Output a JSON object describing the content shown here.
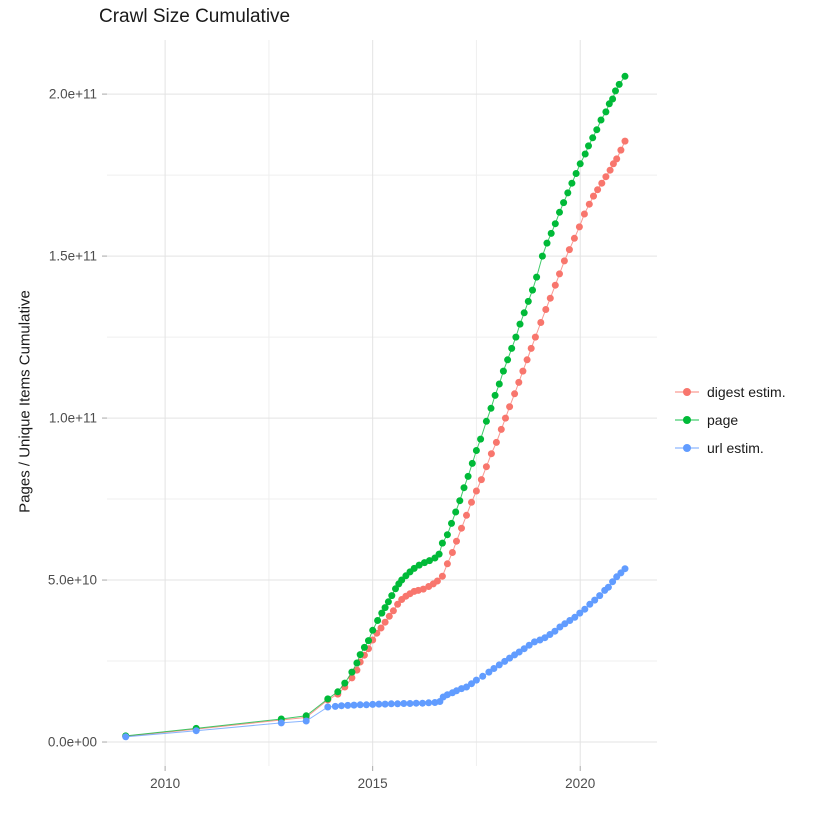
{
  "title": "Crawl Size Cumulative",
  "chart_data": {
    "type": "scatter",
    "title": "Crawl Size Cumulative",
    "xlabel": "",
    "ylabel": "Pages / Unique Items Cumulative",
    "grid": true,
    "legend_position": "right",
    "x_range": [
      2008.6,
      2021.85
    ],
    "y_range": [
      -7400000000,
      216700000000
    ],
    "x_ticks": {
      "major": [
        2010,
        2015,
        2020
      ],
      "minor": [
        2012.5,
        2017.5
      ],
      "labels": [
        "2010",
        "2015",
        "2020"
      ]
    },
    "y_ticks": {
      "major": [
        0,
        50000000000,
        100000000000,
        150000000000,
        200000000000
      ],
      "minor": [
        25000000000,
        75000000000,
        125000000000,
        175000000000
      ],
      "labels": [
        "0.0e+00",
        "5.0e+10",
        "1.0e+11",
        "1.5e+11",
        "2.0e+11"
      ]
    },
    "series": [
      {
        "name": "digest estim.",
        "color": "#F8766D",
        "points": [
          [
            2009.05,
            1800000000.0
          ],
          [
            2010.75,
            4000000000.0
          ],
          [
            2012.8,
            6800000000.0
          ],
          [
            2013.4,
            7600000000.0
          ],
          [
            2013.92,
            13000000000.0
          ],
          [
            2014.16,
            14800000000.0
          ],
          [
            2014.33,
            17000000000.0
          ],
          [
            2014.5,
            19800000000.0
          ],
          [
            2014.62,
            22200000000.0
          ],
          [
            2014.7,
            24700000000.0
          ],
          [
            2014.8,
            26800000000.0
          ],
          [
            2014.9,
            28800000000.0
          ],
          [
            2015.0,
            31500000000.0
          ],
          [
            2015.1,
            33600000000.0
          ],
          [
            2015.2,
            35200000000.0
          ],
          [
            2015.3,
            37000000000.0
          ],
          [
            2015.4,
            38800000000.0
          ],
          [
            2015.5,
            40500000000.0
          ],
          [
            2015.6,
            42500000000.0
          ],
          [
            2015.7,
            44000000000.0
          ],
          [
            2015.8,
            45000000000.0
          ],
          [
            2015.9,
            45800000000.0
          ],
          [
            2016.0,
            46500000000.0
          ],
          [
            2016.1,
            46800000000.0
          ],
          [
            2016.22,
            47200000000.0
          ],
          [
            2016.35,
            48000000000.0
          ],
          [
            2016.46,
            48800000000.0
          ],
          [
            2016.56,
            49700000000.0
          ],
          [
            2016.68,
            51200000000.0
          ],
          [
            2016.8,
            55000000000.0
          ],
          [
            2016.92,
            58500000000.0
          ],
          [
            2017.02,
            62000000000.0
          ],
          [
            2017.14,
            66000000000.0
          ],
          [
            2017.26,
            70000000000.0
          ],
          [
            2017.38,
            74000000000.0
          ],
          [
            2017.5,
            77500000000.0
          ],
          [
            2017.62,
            81000000000.0
          ],
          [
            2017.74,
            85000000000.0
          ],
          [
            2017.86,
            89000000000.0
          ],
          [
            2017.98,
            92500000000.0
          ],
          [
            2018.1,
            96500000000.0
          ],
          [
            2018.2,
            100000000000.0
          ],
          [
            2018.3,
            103500000000.0
          ],
          [
            2018.42,
            107500000000.0
          ],
          [
            2018.52,
            111000000000.0
          ],
          [
            2018.62,
            114500000000.0
          ],
          [
            2018.72,
            118000000000.0
          ],
          [
            2018.82,
            121500000000.0
          ],
          [
            2018.92,
            125000000000.0
          ],
          [
            2019.05,
            129500000000.0
          ],
          [
            2019.17,
            133500000000.0
          ],
          [
            2019.28,
            137000000000.0
          ],
          [
            2019.4,
            141000000000.0
          ],
          [
            2019.5,
            144500000000.0
          ],
          [
            2019.62,
            148500000000.0
          ],
          [
            2019.74,
            152000000000.0
          ],
          [
            2019.86,
            155500000000.0
          ],
          [
            2019.98,
            159000000000.0
          ],
          [
            2020.1,
            163000000000.0
          ],
          [
            2020.22,
            166000000000.0
          ],
          [
            2020.32,
            168500000000.0
          ],
          [
            2020.42,
            170500000000.0
          ],
          [
            2020.52,
            172500000000.0
          ],
          [
            2020.62,
            174500000000.0
          ],
          [
            2020.72,
            176500000000.0
          ],
          [
            2020.8,
            178500000000.0
          ],
          [
            2020.88,
            180000000000.0
          ],
          [
            2020.98,
            182700000000.0
          ],
          [
            2021.08,
            185500000000.0
          ]
        ]
      },
      {
        "name": "page",
        "color": "#00BA38",
        "points": [
          [
            2009.05,
            1900000000.0
          ],
          [
            2010.75,
            4200000000.0
          ],
          [
            2012.8,
            7100000000.0
          ],
          [
            2013.4,
            8100000000.0
          ],
          [
            2013.92,
            13300000000.0
          ],
          [
            2014.16,
            15500000000.0
          ],
          [
            2014.33,
            18200000000.0
          ],
          [
            2014.5,
            21600000000.0
          ],
          [
            2014.62,
            24400000000.0
          ],
          [
            2014.7,
            27000000000.0
          ],
          [
            2014.8,
            29200000000.0
          ],
          [
            2014.9,
            31300000000.0
          ],
          [
            2015.0,
            34500000000.0
          ],
          [
            2015.12,
            37500000000.0
          ],
          [
            2015.22,
            39800000000.0
          ],
          [
            2015.3,
            41500000000.0
          ],
          [
            2015.38,
            43300000000.0
          ],
          [
            2015.46,
            45200000000.0
          ],
          [
            2015.55,
            47300000000.0
          ],
          [
            2015.63,
            48800000000.0
          ],
          [
            2015.7,
            50000000000.0
          ],
          [
            2015.8,
            51300000000.0
          ],
          [
            2015.9,
            52500000000.0
          ],
          [
            2016.0,
            53600000000.0
          ],
          [
            2016.12,
            54600000000.0
          ],
          [
            2016.25,
            55400000000.0
          ],
          [
            2016.37,
            56000000000.0
          ],
          [
            2016.5,
            56800000000.0
          ],
          [
            2016.6,
            58000000000.0
          ],
          [
            2016.68,
            61400000000.0
          ],
          [
            2016.8,
            64000000000.0
          ],
          [
            2016.9,
            67500000000.0
          ],
          [
            2017.0,
            71000000000.0
          ],
          [
            2017.1,
            74500000000.0
          ],
          [
            2017.2,
            78500000000.0
          ],
          [
            2017.3,
            82000000000.0
          ],
          [
            2017.4,
            86000000000.0
          ],
          [
            2017.5,
            90000000000.0
          ],
          [
            2017.6,
            93500000000.0
          ],
          [
            2017.74,
            99000000000.0
          ],
          [
            2017.85,
            103000000000.0
          ],
          [
            2017.95,
            107000000000.0
          ],
          [
            2018.05,
            110500000000.0
          ],
          [
            2018.15,
            114500000000.0
          ],
          [
            2018.25,
            118000000000.0
          ],
          [
            2018.35,
            121500000000.0
          ],
          [
            2018.45,
            125000000000.0
          ],
          [
            2018.55,
            129000000000.0
          ],
          [
            2018.65,
            132500000000.0
          ],
          [
            2018.75,
            136000000000.0
          ],
          [
            2018.85,
            139500000000.0
          ],
          [
            2018.95,
            143500000000.0
          ],
          [
            2019.09,
            150000000000.0
          ],
          [
            2019.2,
            154000000000.0
          ],
          [
            2019.3,
            157000000000.0
          ],
          [
            2019.4,
            160000000000.0
          ],
          [
            2019.5,
            163500000000.0
          ],
          [
            2019.6,
            166500000000.0
          ],
          [
            2019.7,
            169500000000.0
          ],
          [
            2019.8,
            172500000000.0
          ],
          [
            2019.9,
            175500000000.0
          ],
          [
            2020.0,
            178500000000.0
          ],
          [
            2020.12,
            181500000000.0
          ],
          [
            2020.2,
            184000000000.0
          ],
          [
            2020.3,
            186500000000.0
          ],
          [
            2020.4,
            189000000000.0
          ],
          [
            2020.5,
            192000000000.0
          ],
          [
            2020.62,
            194500000000.0
          ],
          [
            2020.7,
            197000000000.0
          ],
          [
            2020.78,
            198500000000.0
          ],
          [
            2020.85,
            201000000000.0
          ],
          [
            2020.94,
            203000000000.0
          ],
          [
            2021.08,
            205500000000.0
          ]
        ]
      },
      {
        "name": "url estim.",
        "color": "#619CFF",
        "points": [
          [
            2009.05,
            1600000000.0
          ],
          [
            2010.75,
            3500000000.0
          ],
          [
            2012.8,
            5900000000.0
          ],
          [
            2013.4,
            6500000000.0
          ],
          [
            2013.92,
            10800000000.0
          ],
          [
            2014.1,
            11000000000.0
          ],
          [
            2014.25,
            11200000000.0
          ],
          [
            2014.4,
            11300000000.0
          ],
          [
            2014.55,
            11400000000.0
          ],
          [
            2014.7,
            11500000000.0
          ],
          [
            2014.85,
            11500000000.0
          ],
          [
            2015.0,
            11600000000.0
          ],
          [
            2015.15,
            11700000000.0
          ],
          [
            2015.3,
            11700000000.0
          ],
          [
            2015.45,
            11800000000.0
          ],
          [
            2015.6,
            11800000000.0
          ],
          [
            2015.75,
            11900000000.0
          ],
          [
            2015.9,
            11900000000.0
          ],
          [
            2016.05,
            12000000000.0
          ],
          [
            2016.2,
            12000000000.0
          ],
          [
            2016.35,
            12100000000.0
          ],
          [
            2016.5,
            12200000000.0
          ],
          [
            2016.62,
            12500000000.0
          ],
          [
            2016.7,
            13900000000.0
          ],
          [
            2016.8,
            14600000000.0
          ],
          [
            2016.92,
            15200000000.0
          ],
          [
            2017.02,
            15800000000.0
          ],
          [
            2017.14,
            16500000000.0
          ],
          [
            2017.26,
            17000000000.0
          ],
          [
            2017.38,
            18000000000.0
          ],
          [
            2017.5,
            19100000000.0
          ],
          [
            2017.65,
            20300000000.0
          ],
          [
            2017.8,
            21600000000.0
          ],
          [
            2017.92,
            22700000000.0
          ],
          [
            2018.05,
            23800000000.0
          ],
          [
            2018.18,
            24900000000.0
          ],
          [
            2018.3,
            25900000000.0
          ],
          [
            2018.42,
            26900000000.0
          ],
          [
            2018.53,
            27800000000.0
          ],
          [
            2018.65,
            28800000000.0
          ],
          [
            2018.77,
            29900000000.0
          ],
          [
            2018.9,
            30900000000.0
          ],
          [
            2019.03,
            31500000000.0
          ],
          [
            2019.15,
            32200000000.0
          ],
          [
            2019.27,
            33200000000.0
          ],
          [
            2019.39,
            34200000000.0
          ],
          [
            2019.51,
            35500000000.0
          ],
          [
            2019.63,
            36500000000.0
          ],
          [
            2019.75,
            37500000000.0
          ],
          [
            2019.87,
            38500000000.0
          ],
          [
            2019.99,
            39800000000.0
          ],
          [
            2020.11,
            41000000000.0
          ],
          [
            2020.23,
            42500000000.0
          ],
          [
            2020.35,
            43800000000.0
          ],
          [
            2020.47,
            45200000000.0
          ],
          [
            2020.59,
            46800000000.0
          ],
          [
            2020.68,
            47800000000.0
          ],
          [
            2020.78,
            49500000000.0
          ],
          [
            2020.88,
            51000000000.0
          ],
          [
            2020.98,
            52200000000.0
          ],
          [
            2021.08,
            53500000000.0
          ]
        ]
      }
    ]
  },
  "style": {
    "grid_major_color": "#e3e3e3",
    "grid_minor_color": "#efefef",
    "tick_mark_color": "#a8a8a8",
    "tick_label_color": "#4d4d4d",
    "background": "#ffffff"
  }
}
